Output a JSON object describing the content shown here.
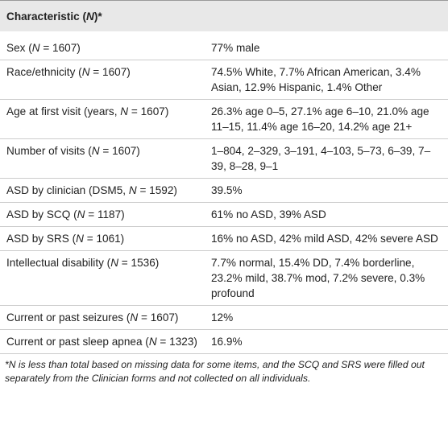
{
  "header": [
    "Characteristic (",
    "N",
    ")*"
  ],
  "rows": [
    {
      "characteristic": [
        "Sex (",
        "N",
        " = 1607)"
      ],
      "value": "77% male"
    },
    {
      "characteristic": [
        "Race/ethnicity (",
        "N",
        " = 1607)"
      ],
      "value": "74.5% White, 7.7% African American, 3.4% Asian, 12.9% Hispanic, 1.4% Other"
    },
    {
      "characteristic": [
        "Age at first visit (years, ",
        "N",
        " = 1607)"
      ],
      "value": "26.3% age 0–5, 27.1% age 6–10, 21.0% age 11–15, 11.4% age 16–20, 14.2% age 21+"
    },
    {
      "characteristic": [
        "Number of visits (",
        "N",
        " = 1607)"
      ],
      "value": "1–804, 2–329, 3–191, 4–103, 5–73, 6–39, 7–39, 8–28, 9–1"
    },
    {
      "characteristic": [
        "ASD by clinician (DSM5, ",
        "N",
        " = 1592)"
      ],
      "value": "39.5%"
    },
    {
      "characteristic": [
        "ASD by SCQ (",
        "N",
        " = 1187)"
      ],
      "value": "61% no ASD, 39% ASD"
    },
    {
      "characteristic": [
        "ASD by SRS (",
        "N",
        " = 1061)"
      ],
      "value": "16% no ASD, 42% mild ASD, 42% severe ASD"
    },
    {
      "characteristic": [
        "Intellectual disability (",
        "N",
        " = 1536)"
      ],
      "value": "7.7% normal, 15.4% DD, 7.4% borderline, 23.2% mild, 38.7% mod, 7.2% severe, 0.3% profound"
    },
    {
      "characteristic": [
        "Current or past seizures (",
        "N",
        " = 1607)"
      ],
      "value": "12%"
    },
    {
      "characteristic": [
        "Current or past sleep apnea (",
        "N",
        " = 1323)"
      ],
      "value": "16.9%"
    }
  ],
  "footnote": "*N is less than total based on missing data for some items, and the SCQ and SRS were filled out separately from the Clinician forms and not collected on all individuals."
}
